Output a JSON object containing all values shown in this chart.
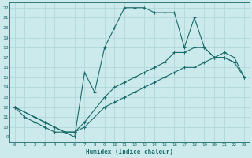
{
  "xlabel": "Humidex (Indice chaleur)",
  "bg_color": "#cce9eb",
  "grid_color": "#b0d8db",
  "line_color": "#1a6b6b",
  "xlim": [
    -0.5,
    23.5
  ],
  "ylim": [
    8.5,
    22.5
  ],
  "xticks": [
    0,
    1,
    2,
    3,
    4,
    5,
    6,
    7,
    8,
    9,
    10,
    11,
    12,
    13,
    14,
    15,
    16,
    17,
    18,
    19,
    20,
    21,
    22,
    23
  ],
  "yticks": [
    9,
    10,
    11,
    12,
    13,
    14,
    15,
    16,
    17,
    18,
    19,
    20,
    21,
    22
  ],
  "line1_x": [
    0,
    1,
    2,
    3,
    4,
    5,
    6,
    7,
    8,
    9,
    10,
    11,
    12,
    13,
    14,
    15,
    16,
    17,
    18,
    19,
    20,
    21,
    22
  ],
  "line1_y": [
    12,
    11,
    10.5,
    10,
    9.5,
    9.5,
    9,
    15.5,
    13.5,
    18,
    20,
    22,
    22,
    22,
    21.5,
    21.5,
    21.5,
    18,
    21,
    18,
    17,
    17,
    16.5
  ],
  "line2_x": [
    0,
    2,
    3,
    4,
    5,
    6,
    7,
    9,
    10,
    11,
    12,
    13,
    14,
    15,
    16,
    17,
    18,
    19,
    20,
    21,
    22,
    23
  ],
  "line2_y": [
    12,
    11,
    10.5,
    10,
    9.5,
    9.5,
    10.5,
    13,
    14,
    14.5,
    15,
    15.5,
    16,
    16.5,
    17.5,
    17.5,
    18,
    18,
    17,
    17.5,
    17,
    15
  ],
  "line3_x": [
    0,
    2,
    3,
    4,
    5,
    6,
    7,
    9,
    10,
    11,
    12,
    13,
    14,
    15,
    16,
    17,
    18,
    19,
    20,
    21,
    22,
    23
  ],
  "line3_y": [
    12,
    11,
    10.5,
    10,
    9.5,
    9.5,
    10,
    12,
    12.5,
    13,
    13.5,
    14,
    14.5,
    15,
    15.5,
    16,
    16,
    16.5,
    17,
    17,
    16.5,
    15
  ]
}
